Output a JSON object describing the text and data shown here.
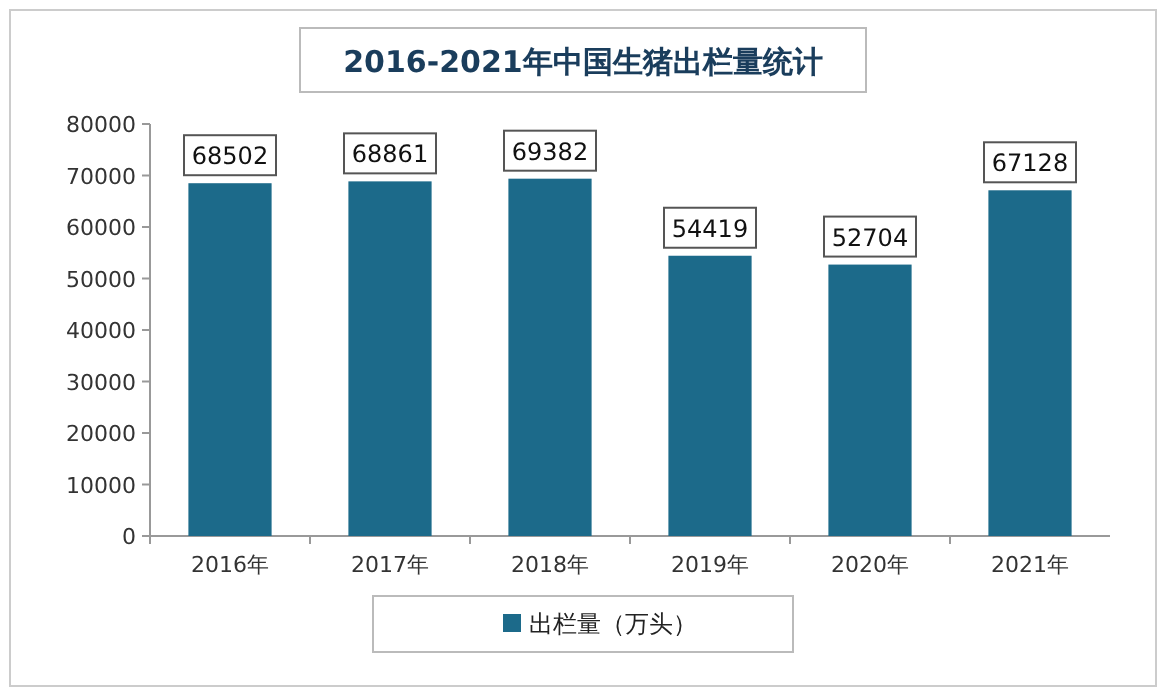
{
  "chart_data": {
    "type": "bar",
    "title": "2016-2021年中国生猪出栏量统计",
    "categories": [
      "2016年",
      "2017年",
      "2018年",
      "2019年",
      "2020年",
      "2021年"
    ],
    "series": [
      {
        "name": "出栏量（万头）",
        "color": "#1c6a8a",
        "values": [
          68502,
          68861,
          69382,
          54419,
          52704,
          67128
        ]
      }
    ],
    "ylim": [
      0,
      80000
    ],
    "yticks": [
      0,
      10000,
      20000,
      30000,
      40000,
      50000,
      60000,
      70000,
      80000
    ],
    "data_labels": true,
    "legend": "bottom"
  }
}
